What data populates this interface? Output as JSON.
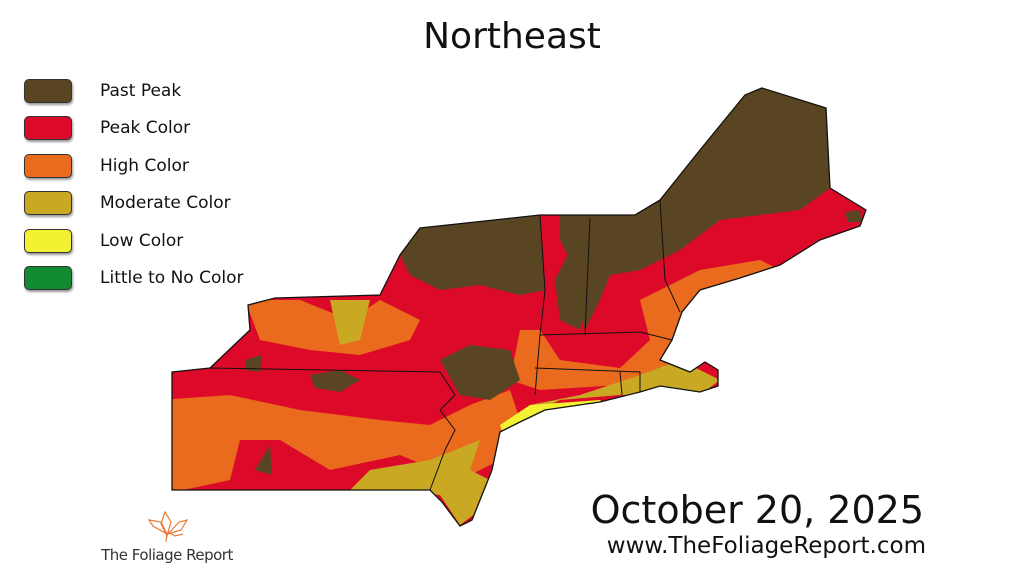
{
  "title": "Northeast",
  "legend": [
    {
      "label": "Past Peak",
      "color": "#5a4522"
    },
    {
      "label": "Peak Color",
      "color": "#dc0a28"
    },
    {
      "label": "High Color",
      "color": "#ea6a1e"
    },
    {
      "label": "Moderate Color",
      "color": "#c9a823"
    },
    {
      "label": "Low Color",
      "color": "#f2f233"
    },
    {
      "label": "Little to No Color",
      "color": "#118a32"
    }
  ],
  "date": "October 20, 2025",
  "url": "www.TheFoliageReport.com",
  "logo": {
    "text": "The Foliage Report",
    "icon": "maple-leaf-icon"
  }
}
